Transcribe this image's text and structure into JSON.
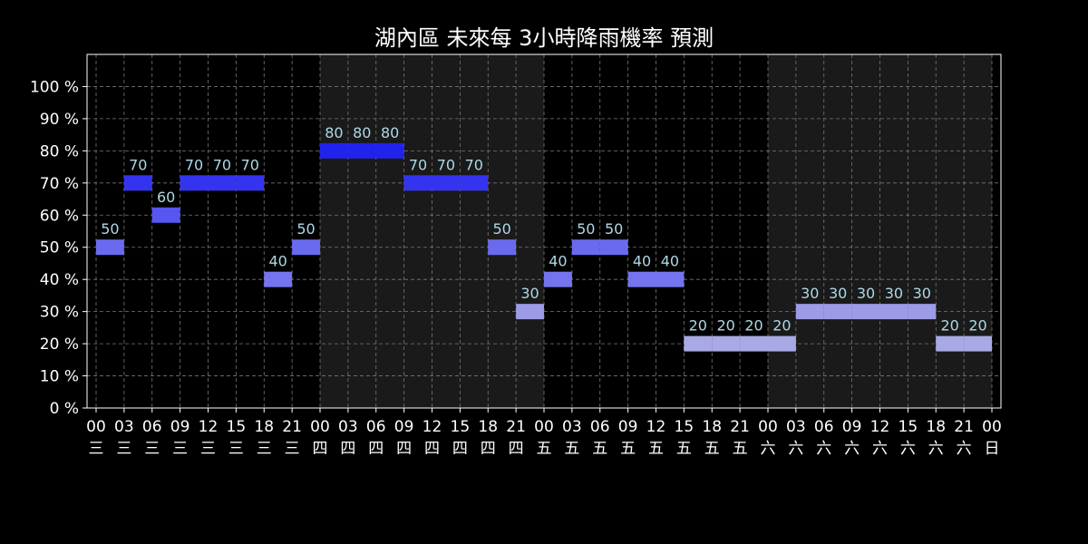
{
  "chart_data": {
    "type": "bar",
    "title": "湖內區 未來每 3小時降雨機率 預測",
    "xlabel": "",
    "ylabel": "",
    "y_unit": "%",
    "ylim": [
      0,
      110
    ],
    "y_ticks": [
      0,
      10,
      20,
      30,
      40,
      50,
      60,
      70,
      80,
      90,
      100
    ],
    "y_tick_labels": [
      "0 %",
      "10 %",
      "20 %",
      "30 %",
      "40 %",
      "50 %",
      "60 %",
      "70 %",
      "80 %",
      "90 %",
      "100 %"
    ],
    "grid": true,
    "x_ticks": [
      {
        "hour": "00",
        "day": "三"
      },
      {
        "hour": "03",
        "day": "三"
      },
      {
        "hour": "06",
        "day": "三"
      },
      {
        "hour": "09",
        "day": "三"
      },
      {
        "hour": "12",
        "day": "三"
      },
      {
        "hour": "15",
        "day": "三"
      },
      {
        "hour": "18",
        "day": "三"
      },
      {
        "hour": "21",
        "day": "三"
      },
      {
        "hour": "00",
        "day": "四"
      },
      {
        "hour": "03",
        "day": "四"
      },
      {
        "hour": "06",
        "day": "四"
      },
      {
        "hour": "09",
        "day": "四"
      },
      {
        "hour": "12",
        "day": "四"
      },
      {
        "hour": "15",
        "day": "四"
      },
      {
        "hour": "18",
        "day": "四"
      },
      {
        "hour": "21",
        "day": "四"
      },
      {
        "hour": "00",
        "day": "五"
      },
      {
        "hour": "03",
        "day": "五"
      },
      {
        "hour": "06",
        "day": "五"
      },
      {
        "hour": "09",
        "day": "五"
      },
      {
        "hour": "12",
        "day": "五"
      },
      {
        "hour": "15",
        "day": "五"
      },
      {
        "hour": "18",
        "day": "五"
      },
      {
        "hour": "21",
        "day": "五"
      },
      {
        "hour": "00",
        "day": "六"
      },
      {
        "hour": "03",
        "day": "六"
      },
      {
        "hour": "06",
        "day": "六"
      },
      {
        "hour": "09",
        "day": "六"
      },
      {
        "hour": "12",
        "day": "六"
      },
      {
        "hour": "15",
        "day": "六"
      },
      {
        "hour": "18",
        "day": "六"
      },
      {
        "hour": "21",
        "day": "六"
      },
      {
        "hour": "00",
        "day": "日"
      }
    ],
    "values": [
      50,
      70,
      60,
      70,
      70,
      70,
      40,
      50,
      80,
      80,
      80,
      70,
      70,
      70,
      50,
      30,
      40,
      50,
      50,
      40,
      40,
      20,
      20,
      20,
      20,
      30,
      30,
      30,
      30,
      30,
      20,
      20
    ],
    "shaded_day_ranges": [
      [
        8,
        16
      ],
      [
        24,
        32
      ]
    ],
    "colors": {
      "background": "#000000",
      "shaded_band": "#1a1a1a",
      "value_label": "#add8e6",
      "value_20": "#a9a9e6",
      "value_30": "#9b9be6",
      "value_40": "#7474ee",
      "value_50": "#6a6aee",
      "value_60": "#5656f0",
      "value_70": "#3434f0",
      "value_80": "#2222ee"
    }
  }
}
